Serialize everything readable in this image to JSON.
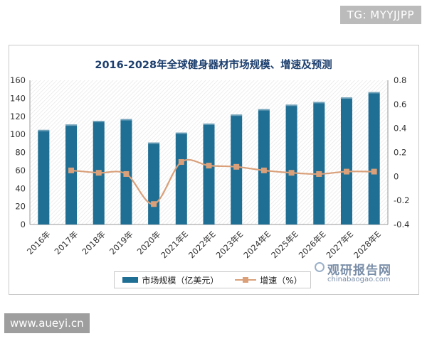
{
  "watermark_top": "TG: MYYJJPP",
  "watermark_bottom": "www.aueyi.cn",
  "source_logo": {
    "cn": "观研报告网",
    "en": "chinabaogao.com"
  },
  "colors": {
    "bar": "#1f6e93",
    "line": "#d9a07a",
    "title": "#1d3f6e"
  },
  "chart_data": {
    "type": "bar",
    "title": "2016-2028年全球健身器材市场规模、增速及预测",
    "categories": [
      "2016年",
      "2017年",
      "2018年",
      "2019年",
      "2020年",
      "2021年E",
      "2022年E",
      "2023年E",
      "2024年E",
      "2025年E",
      "2026年E",
      "2027年E",
      "2028年E"
    ],
    "series": [
      {
        "name": "市场规模（亿美元）",
        "type": "bar",
        "axis": "left",
        "values": [
          105,
          111,
          115,
          117,
          91,
          102,
          112,
          122,
          128,
          133,
          136,
          141,
          147
        ]
      },
      {
        "name": "增速（%）",
        "type": "line",
        "axis": "right",
        "values": [
          null,
          0.05,
          0.03,
          0.02,
          -0.23,
          0.12,
          0.09,
          0.08,
          0.05,
          0.03,
          0.02,
          0.04,
          0.04
        ]
      }
    ],
    "ylim_left": [
      0,
      160
    ],
    "yticks_left": [
      0,
      20,
      40,
      60,
      80,
      100,
      120,
      140,
      160
    ],
    "ylim_right": [
      -0.4,
      0.8
    ],
    "yticks_right": [
      -0.4,
      -0.2,
      0,
      0.2,
      0.4,
      0.6,
      0.8
    ],
    "ytick_labels_right": [
      "-0.4",
      "-0.2",
      "0",
      "0.2",
      "0.4",
      "0.6",
      "0.8"
    ],
    "legend": [
      "市场规模（亿美元）",
      "增速（%）"
    ],
    "legend_position": "bottom"
  }
}
